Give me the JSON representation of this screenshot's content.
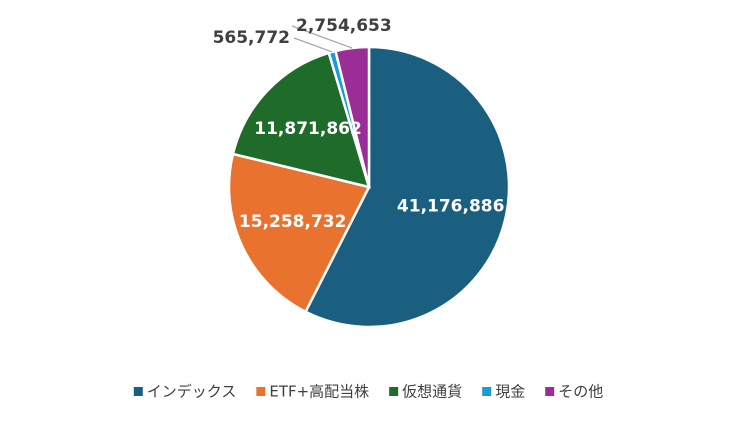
{
  "chart_data": {
    "type": "pie",
    "categories": [
      "インデックス",
      "ETF+高配当株",
      "仮想通貨",
      "現金",
      "その他"
    ],
    "values": [
      41176886,
      15258732,
      11871862,
      565772,
      2754653
    ],
    "value_labels": [
      "41,176,886",
      "15,258,732",
      "11,871,862",
      "565,772",
      "2,754,653"
    ],
    "colors": [
      "#1a5e80",
      "#e8722e",
      "#1e6b2a",
      "#1b9ad6",
      "#9b2d96"
    ],
    "legend": "bottom"
  }
}
